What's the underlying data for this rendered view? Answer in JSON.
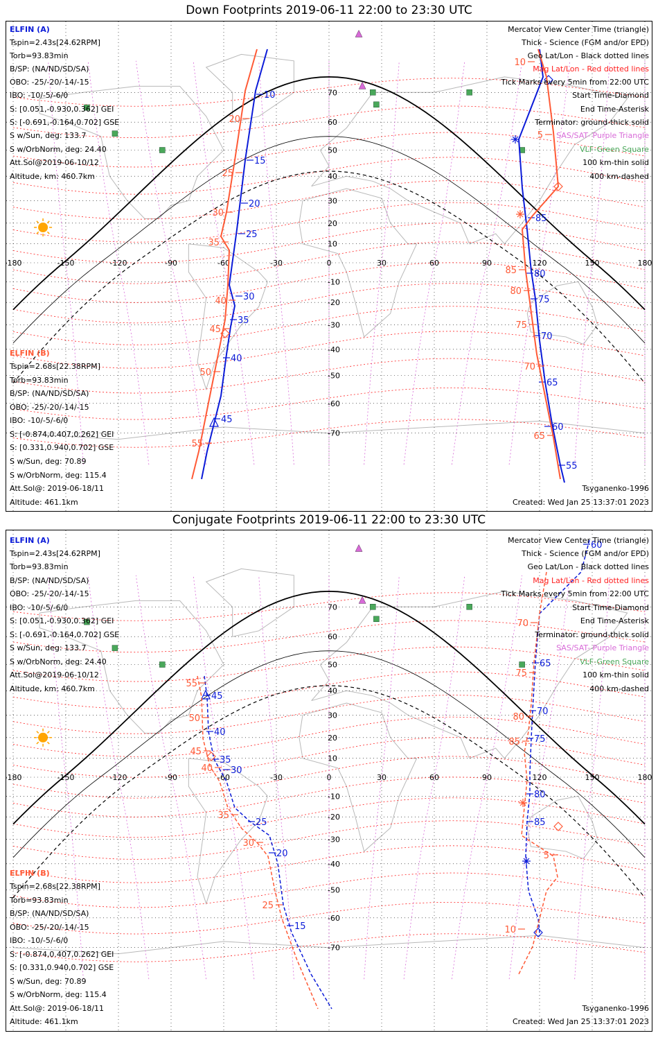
{
  "panels": [
    {
      "id": "down",
      "title": "Down Footprints 2019-06-11 22:00 to 23:30 UTC"
    },
    {
      "id": "conjugate",
      "title": "Conjugate Footprints 2019-06-11 22:00 to 23:30 UTC"
    }
  ],
  "sat_a": {
    "name": "ELFIN (A)",
    "lines": [
      "Tspin=2.43s[24.62RPM]",
      "Torb=93.83min",
      "B/SP: (NA/ND/SD/SA)",
      "OBO: -25/-20/-14/-15",
      "IBO: -10/-5/-6/0",
      "S: [0.051,-0.930,0.362] GEI",
      "S: [-0.691,-0.164,0.702] GSE",
      "S w/Sun, deg: 133.7",
      "S w/OrbNorm, deg: 24.40",
      "Att.Sol@2019-06-10/12",
      "Altitude, km: 460.7km"
    ]
  },
  "sat_b": {
    "name": "ELFIN (B)",
    "lines": [
      "Tspin=2.68s[22.38RPM]",
      "Torb=93.83min",
      "B/SP: (NA/ND/SD/SA)",
      "OBO: -25/-20/-14/-15",
      "IBO: -10/-5/-6/0",
      "S: [-0.874,0.407,0.262] GEI",
      "S: [0.331,0.940,0.702] GSE",
      "S w/Sun, deg: 70.89",
      "S w/OrbNorm, deg: 115.4",
      "Att.Sol@: 2019-06-18/11",
      "Altitude: 461.1km"
    ]
  },
  "legend": [
    {
      "text": "Mercator View Center Time (triangle)",
      "color": "#000000"
    },
    {
      "text": "Thick - Science (FGM and/or EPD)",
      "color": "#000000"
    },
    {
      "text": "Geo Lat/Lon - Black dotted lines",
      "color": "#000000"
    },
    {
      "text": "Mag Lat/Lon - Red dotted lines",
      "color": "#ff2020"
    },
    {
      "text": "Tick Marks every 5min from 22:00 UTC",
      "color": "#000000"
    },
    {
      "text": "Start Time-Diamond",
      "color": "#000000"
    },
    {
      "text": "End Time-Asterisk",
      "color": "#000000"
    },
    {
      "text": "Terminator: ground-thick solid",
      "color": "#000000"
    },
    {
      "text": "SAS/SAT- Purple Triangle",
      "color": "#d86ad8"
    },
    {
      "text": "VLF-Green Square",
      "color": "#4aa85a"
    },
    {
      "text": "100 km-thin solid",
      "color": "#000000"
    },
    {
      "text": "400 km-dashed",
      "color": "#000000"
    }
  ],
  "model": "Tsyganenko-1996",
  "created": "Created: Wed Jan 25 13:37:01 2023",
  "lon_ticks": [
    "-180",
    "-150",
    "-120",
    "-90",
    "-60",
    "-30",
    "0",
    "30",
    "60",
    "90",
    "120",
    "150",
    "180"
  ],
  "lat_ticks": [
    "70",
    "60",
    "50",
    "40",
    "30",
    "20",
    "10",
    "-10",
    "-20",
    "-30",
    "-40",
    "-50",
    "-60",
    "-70"
  ],
  "colors": {
    "sat_a": "#0b1bd8",
    "sat_b": "#ff5a36",
    "mag_grid": "#ff2020",
    "geo_grid": "#000000",
    "sas": "#d86ad8",
    "vlf": "#4aa85a",
    "sun": "#ffa500"
  },
  "down_tracks": {
    "a1_ticks": [
      "10",
      "15",
      "20",
      "25",
      "30",
      "35",
      "40",
      "45"
    ],
    "b1_ticks": [
      "20",
      "25",
      "30",
      "35",
      "40",
      "45",
      "50",
      "55"
    ],
    "a2_ticks": [
      "85",
      "80",
      "75",
      "70",
      "65",
      "60",
      "55"
    ],
    "b2_ticks": [
      "10",
      "5",
      "85",
      "80",
      "75",
      "70",
      "65"
    ]
  },
  "conj_tracks": {
    "a1_ticks": [
      "45",
      "40",
      "35",
      "30",
      "25",
      "20",
      "15"
    ],
    "b1_ticks": [
      "55",
      "50",
      "45",
      "40",
      "35",
      "30",
      "25"
    ],
    "a2_ticks": [
      "60",
      "65",
      "70",
      "75",
      "80",
      "85"
    ],
    "b2_ticks": [
      "70",
      "75",
      "80",
      "85",
      "5",
      "10"
    ]
  }
}
